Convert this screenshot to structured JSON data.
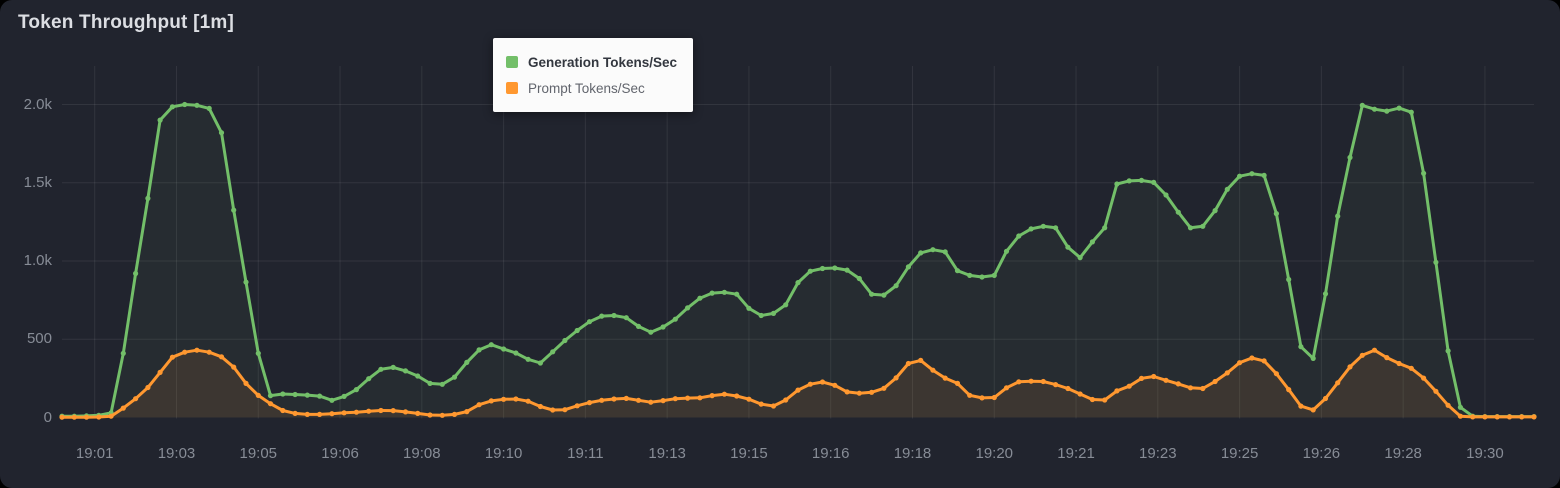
{
  "panel": {
    "title": "Token Throughput [1m]"
  },
  "tooltip": {
    "series": [
      {
        "label": "Generation Tokens/Sec",
        "color": "#73BF69",
        "bold": true
      },
      {
        "label": "Prompt Tokens/Sec",
        "color": "#FF9830",
        "bold": false
      }
    ]
  },
  "colors": {
    "panel_bg": "#21242e",
    "grid": "rgba(255,255,255,0.08)",
    "axis_text": "#878c96",
    "title_text": "#dcdee3",
    "generation": "#73BF69",
    "prompt": "#FF9830"
  },
  "chart_data": {
    "type": "line",
    "title": "Token Throughput [1m]",
    "x_unit": "seconds after 19:00 (ticks every 100s, labels truncated to minutes)",
    "xlim": [
      60,
      1860
    ],
    "ylim": [
      0,
      2000
    ],
    "grid": true,
    "legend_position": "top-center tooltip box",
    "y_ticks": [
      0,
      500,
      1000,
      1500,
      2000
    ],
    "y_tick_labels": [
      "0",
      "500",
      "1.0k",
      "1.5k",
      "2.0k"
    ],
    "x_tick_seconds": [
      100,
      200,
      300,
      400,
      500,
      600,
      700,
      800,
      900,
      1000,
      1100,
      1200,
      1300,
      1400,
      1500,
      1600,
      1700,
      1800
    ],
    "x_tick_labels": [
      "19:01",
      "19:03",
      "19:05",
      "19:06",
      "19:08",
      "19:10",
      "19:11",
      "19:13",
      "19:15",
      "19:16",
      "19:18",
      "19:20",
      "19:21",
      "19:23",
      "19:25",
      "19:26",
      "19:28",
      "19:30"
    ],
    "point_interval_seconds": 15,
    "series": [
      {
        "name": "Generation Tokens/Sec",
        "color": "#73BF69",
        "fill": "rgba(115,191,105,0.06)",
        "points": [
          [
            60,
            8
          ],
          [
            75,
            8
          ],
          [
            90,
            10
          ],
          [
            105,
            14
          ],
          [
            120,
            30
          ],
          [
            135,
            410
          ],
          [
            150,
            920
          ],
          [
            165,
            1400
          ],
          [
            180,
            1900
          ],
          [
            195,
            1985
          ],
          [
            210,
            2000
          ],
          [
            225,
            1995
          ],
          [
            240,
            1975
          ],
          [
            255,
            1820
          ],
          [
            270,
            1325
          ],
          [
            285,
            865
          ],
          [
            300,
            410
          ],
          [
            315,
            140
          ],
          [
            330,
            150
          ],
          [
            345,
            147
          ],
          [
            360,
            143
          ],
          [
            375,
            137
          ],
          [
            390,
            110
          ],
          [
            405,
            135
          ],
          [
            420,
            178
          ],
          [
            435,
            248
          ],
          [
            450,
            308
          ],
          [
            465,
            320
          ],
          [
            480,
            298
          ],
          [
            495,
            265
          ],
          [
            510,
            218
          ],
          [
            525,
            212
          ],
          [
            540,
            258
          ],
          [
            555,
            352
          ],
          [
            570,
            432
          ],
          [
            585,
            465
          ],
          [
            600,
            438
          ],
          [
            615,
            412
          ],
          [
            630,
            372
          ],
          [
            645,
            348
          ],
          [
            660,
            420
          ],
          [
            675,
            492
          ],
          [
            690,
            556
          ],
          [
            705,
            612
          ],
          [
            720,
            648
          ],
          [
            735,
            652
          ],
          [
            750,
            638
          ],
          [
            765,
            582
          ],
          [
            780,
            545
          ],
          [
            795,
            578
          ],
          [
            810,
            628
          ],
          [
            825,
            700
          ],
          [
            840,
            762
          ],
          [
            855,
            795
          ],
          [
            870,
            800
          ],
          [
            885,
            788
          ],
          [
            900,
            698
          ],
          [
            915,
            652
          ],
          [
            930,
            665
          ],
          [
            945,
            720
          ],
          [
            960,
            862
          ],
          [
            975,
            935
          ],
          [
            990,
            952
          ],
          [
            1005,
            955
          ],
          [
            1020,
            942
          ],
          [
            1035,
            888
          ],
          [
            1050,
            788
          ],
          [
            1065,
            782
          ],
          [
            1080,
            842
          ],
          [
            1095,
            962
          ],
          [
            1110,
            1052
          ],
          [
            1125,
            1072
          ],
          [
            1140,
            1058
          ],
          [
            1155,
            938
          ],
          [
            1170,
            908
          ],
          [
            1185,
            898
          ],
          [
            1200,
            908
          ],
          [
            1215,
            1062
          ],
          [
            1230,
            1160
          ],
          [
            1245,
            1205
          ],
          [
            1260,
            1222
          ],
          [
            1275,
            1212
          ],
          [
            1290,
            1088
          ],
          [
            1305,
            1022
          ],
          [
            1320,
            1122
          ],
          [
            1335,
            1212
          ],
          [
            1350,
            1492
          ],
          [
            1365,
            1512
          ],
          [
            1380,
            1515
          ],
          [
            1395,
            1502
          ],
          [
            1410,
            1422
          ],
          [
            1425,
            1312
          ],
          [
            1440,
            1212
          ],
          [
            1455,
            1222
          ],
          [
            1470,
            1322
          ],
          [
            1485,
            1458
          ],
          [
            1500,
            1542
          ],
          [
            1515,
            1558
          ],
          [
            1533,
            1545
          ],
          [
            1546,
            1283
          ],
          [
            1558,
            943
          ],
          [
            1570,
            577
          ],
          [
            1584,
            228
          ],
          [
            1598,
            577
          ],
          [
            1610,
            943
          ],
          [
            1623,
            1390
          ],
          [
            1632,
            1560
          ],
          [
            1645,
            1998
          ],
          [
            1658,
            1988
          ],
          [
            1672,
            1952
          ],
          [
            1686,
            1962
          ],
          [
            1700,
            1985
          ],
          [
            1709,
            1975
          ],
          [
            1723,
            1635
          ],
          [
            1736,
            1148
          ],
          [
            1749,
            640
          ],
          [
            1763,
            140
          ],
          [
            1775,
            12
          ],
          [
            1790,
            6
          ],
          [
            1805,
            6
          ],
          [
            1820,
            6
          ],
          [
            1835,
            6
          ],
          [
            1850,
            6
          ],
          [
            1860,
            6
          ]
        ]
      },
      {
        "name": "Prompt Tokens/Sec",
        "color": "#FF9830",
        "fill": "rgba(255,152,48,0.10)",
        "points": [
          [
            60,
            2
          ],
          [
            75,
            2
          ],
          [
            90,
            2
          ],
          [
            105,
            3
          ],
          [
            120,
            8
          ],
          [
            135,
            60
          ],
          [
            150,
            120
          ],
          [
            165,
            192
          ],
          [
            180,
            288
          ],
          [
            195,
            385
          ],
          [
            210,
            417
          ],
          [
            225,
            430
          ],
          [
            240,
            417
          ],
          [
            255,
            388
          ],
          [
            270,
            322
          ],
          [
            285,
            218
          ],
          [
            300,
            141
          ],
          [
            315,
            88
          ],
          [
            330,
            45
          ],
          [
            345,
            26
          ],
          [
            360,
            20
          ],
          [
            375,
            20
          ],
          [
            390,
            24
          ],
          [
            405,
            30
          ],
          [
            420,
            34
          ],
          [
            435,
            40
          ],
          [
            450,
            45
          ],
          [
            465,
            44
          ],
          [
            480,
            36
          ],
          [
            495,
            26
          ],
          [
            510,
            16
          ],
          [
            525,
            14
          ],
          [
            540,
            20
          ],
          [
            555,
            38
          ],
          [
            570,
            82
          ],
          [
            585,
            106
          ],
          [
            600,
            116
          ],
          [
            615,
            118
          ],
          [
            630,
            104
          ],
          [
            645,
            70
          ],
          [
            660,
            48
          ],
          [
            675,
            50
          ],
          [
            690,
            75
          ],
          [
            705,
            95
          ],
          [
            720,
            110
          ],
          [
            735,
            118
          ],
          [
            750,
            122
          ],
          [
            765,
            110
          ],
          [
            780,
            98
          ],
          [
            795,
            108
          ],
          [
            810,
            120
          ],
          [
            825,
            124
          ],
          [
            840,
            126
          ],
          [
            855,
            140
          ],
          [
            865,
            152
          ],
          [
            880,
            142
          ],
          [
            895,
            128
          ],
          [
            910,
            95
          ],
          [
            925,
            66
          ],
          [
            940,
            88
          ],
          [
            955,
            160
          ],
          [
            970,
            205
          ],
          [
            985,
            228
          ],
          [
            1000,
            225
          ],
          [
            1015,
            168
          ],
          [
            1030,
            155
          ],
          [
            1045,
            156
          ],
          [
            1060,
            172
          ],
          [
            1075,
            215
          ],
          [
            1090,
            330
          ],
          [
            1100,
            360
          ],
          [
            1110,
            365
          ],
          [
            1125,
            302
          ],
          [
            1140,
            252
          ],
          [
            1155,
            218
          ],
          [
            1170,
            142
          ],
          [
            1185,
            125
          ],
          [
            1200,
            128
          ],
          [
            1215,
            190
          ],
          [
            1230,
            228
          ],
          [
            1245,
            232
          ],
          [
            1260,
            230
          ],
          [
            1275,
            210
          ],
          [
            1290,
            185
          ],
          [
            1305,
            150
          ],
          [
            1320,
            115
          ],
          [
            1335,
            112
          ],
          [
            1350,
            170
          ],
          [
            1365,
            200
          ],
          [
            1380,
            250
          ],
          [
            1395,
            262
          ],
          [
            1410,
            238
          ],
          [
            1425,
            215
          ],
          [
            1440,
            190
          ],
          [
            1455,
            185
          ],
          [
            1470,
            230
          ],
          [
            1485,
            285
          ],
          [
            1500,
            350
          ],
          [
            1515,
            380
          ],
          [
            1528,
            372
          ],
          [
            1540,
            310
          ],
          [
            1555,
            220
          ],
          [
            1570,
            95
          ],
          [
            1585,
            28
          ],
          [
            1600,
            90
          ],
          [
            1615,
            185
          ],
          [
            1630,
            295
          ],
          [
            1645,
            380
          ],
          [
            1662,
            440
          ],
          [
            1675,
            398
          ],
          [
            1690,
            352
          ],
          [
            1705,
            332
          ],
          [
            1720,
            280
          ],
          [
            1735,
            195
          ],
          [
            1750,
            112
          ],
          [
            1765,
            10
          ],
          [
            1780,
            4
          ],
          [
            1795,
            4
          ],
          [
            1810,
            4
          ],
          [
            1825,
            4
          ],
          [
            1840,
            4
          ],
          [
            1860,
            4
          ]
        ]
      }
    ]
  }
}
